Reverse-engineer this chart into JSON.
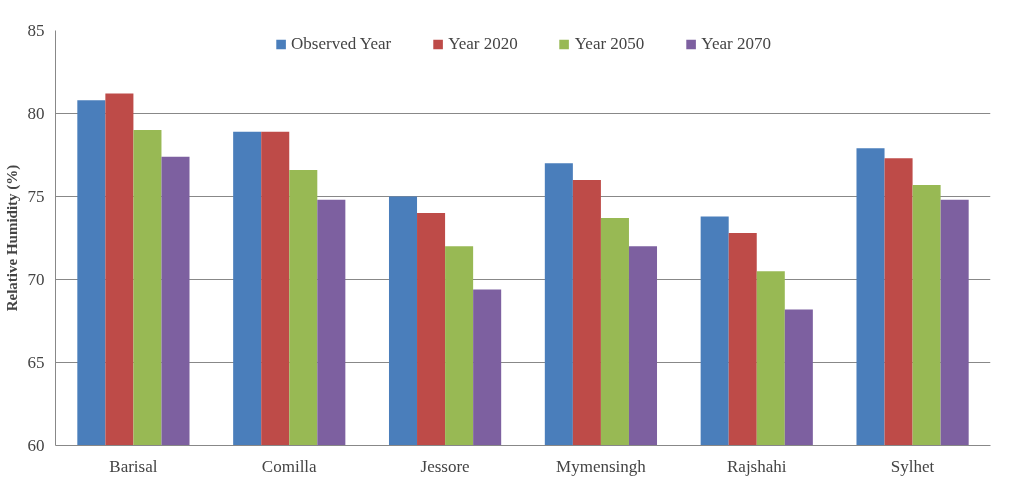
{
  "chart_data": {
    "type": "bar",
    "ylabel": "Relative Humidity (%)",
    "categories": [
      "Barisal",
      "Comilla",
      "Jessore",
      "Mymensingh",
      "Rajshahi",
      "Sylhet"
    ],
    "series": [
      {
        "name": "Observed Year",
        "color": "#4a7ebb",
        "values": [
          80.8,
          78.9,
          75.0,
          77.0,
          73.8,
          77.9
        ]
      },
      {
        "name": "Year 2020",
        "color": "#be4b48",
        "values": [
          81.2,
          78.9,
          74.0,
          76.0,
          72.8,
          77.3
        ]
      },
      {
        "name": "Year 2050",
        "color": "#98b954",
        "values": [
          79.0,
          76.6,
          72.0,
          73.7,
          70.5,
          75.7
        ]
      },
      {
        "name": "Year 2070",
        "color": "#7d60a0",
        "values": [
          77.4,
          74.8,
          69.4,
          72.0,
          68.2,
          74.8
        ]
      }
    ],
    "ylim": [
      60,
      85
    ],
    "yticks": [
      60,
      65,
      70,
      75,
      80,
      85
    ],
    "grid": "y",
    "legend": "top"
  }
}
